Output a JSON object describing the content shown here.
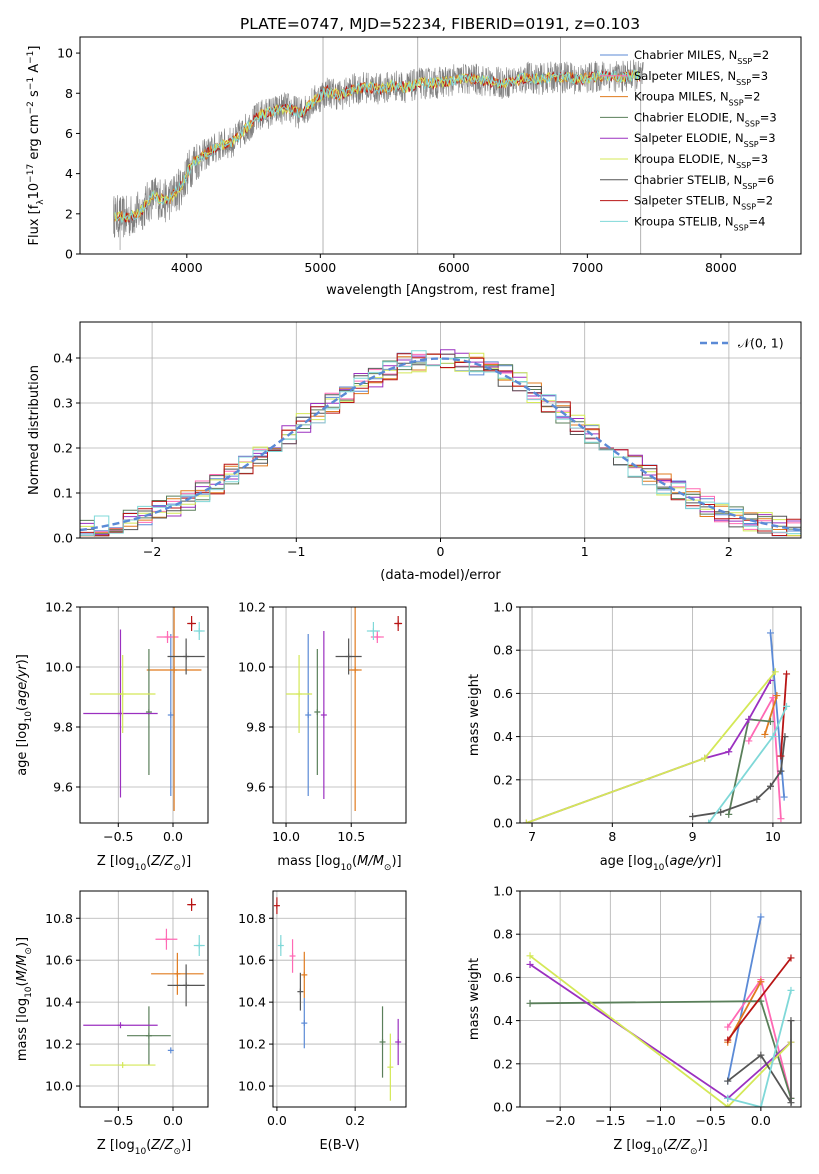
{
  "colors": {
    "chabrier_miles": "#5b8ad6",
    "salpeter_miles": "#ff69b4",
    "kroupa_miles": "#e07b1f",
    "chabrier_elodie": "#5a7f5a",
    "salpeter_elodie": "#9b30c0",
    "kroupa_elodie": "#d4e857",
    "chabrier_stelib": "#555555",
    "salpeter_stelib": "#b81414",
    "kroupa_stelib": "#7fd8d8",
    "normal": "#5b8ad6",
    "data": "#808080"
  },
  "chart_data": [
    {
      "id": "spectrum",
      "type": "line",
      "title": "PLATE=0747, MJD=52234, FIBERID=0191, z=0.103",
      "xlabel": "wavelength [Angstrom, rest frame]",
      "ylabel": "Flux [f_λ10^-17 erg cm^-2 s^-1 A^-1]",
      "xlim": [
        3200,
        8600
      ],
      "ylim": [
        0,
        10.8
      ],
      "xticks": [
        4000,
        5000,
        6000,
        7000,
        8000
      ],
      "yticks": [
        0,
        2,
        4,
        6,
        8,
        10
      ],
      "legend_position": "top-right",
      "legend": [
        "Chabrier MILES, N_SSP=2",
        "Salpeter MILES, N_SSP=3",
        "Kroupa MILES, N_SSP=2",
        "Chabrier ELODIE, N_SSP=3",
        "Salpeter ELODIE, N_SSP=3",
        "Kroupa ELODIE, N_SSP=3",
        "Chabrier STELIB, N_SSP=6",
        "Salpeter STELIB, N_SSP=2",
        "Kroupa STELIB, N_SSP=4"
      ],
      "model_continuum": {
        "x": [
          3450,
          3550,
          3650,
          3750,
          3850,
          3950,
          4050,
          4150,
          4250,
          4350,
          4450,
          4550,
          4650,
          4750,
          4850,
          4950,
          5050,
          5150,
          5250,
          5350,
          5450,
          5550,
          5650,
          5750,
          5850,
          5950,
          6050,
          6150,
          6250,
          6350,
          6450,
          6550,
          6650,
          6750,
          6850,
          6950,
          7050,
          7150,
          7250,
          7350,
          7400
        ],
        "y": [
          1.9,
          1.8,
          2.1,
          2.9,
          2.6,
          3.3,
          4.6,
          5.0,
          5.4,
          5.6,
          6.3,
          6.9,
          7.1,
          7.3,
          7.0,
          7.6,
          8.1,
          7.9,
          8.2,
          8.3,
          8.2,
          8.4,
          8.3,
          8.5,
          8.5,
          8.6,
          8.7,
          8.7,
          8.6,
          8.5,
          8.6,
          8.8,
          8.7,
          8.8,
          8.8,
          8.7,
          8.8,
          8.9,
          8.8,
          8.9,
          8.8
        ]
      }
    },
    {
      "id": "residuals",
      "type": "histogram",
      "xlabel": "(data-model)/error",
      "ylabel": "Normed distribution",
      "xlim": [
        -2.5,
        2.5
      ],
      "ylim": [
        0,
        0.48
      ],
      "xticks": [
        -2,
        -1,
        0,
        1,
        2
      ],
      "yticks": [
        0.0,
        0.1,
        0.2,
        0.3,
        0.4
      ],
      "legend_position": "top-right",
      "legend": [
        "N(0,1)"
      ]
    },
    {
      "id": "age_vs_Z",
      "type": "scatter",
      "xlabel": "Z [log10(Z/Z⊙)]",
      "ylabel": "age  [log10(age/yr)]",
      "xlim": [
        -0.85,
        0.32
      ],
      "ylim": [
        9.48,
        10.2
      ],
      "xticks": [
        -0.5,
        0.0
      ],
      "yticks": [
        9.6,
        9.8,
        10.0,
        10.2
      ],
      "points": [
        {
          "series": "chabrier_miles",
          "x": -0.02,
          "y": 9.84,
          "xerr": 0.0,
          "yerr": 0.27
        },
        {
          "series": "salpeter_miles",
          "x": -0.05,
          "y": 10.1,
          "xerr": 0.1,
          "yerr": 0.02
        },
        {
          "series": "kroupa_miles",
          "x": 0.01,
          "y": 9.99,
          "xerr": 0.25,
          "yerr": 0.47
        },
        {
          "series": "chabrier_elodie",
          "x": -0.22,
          "y": 9.85,
          "xerr": 0.0,
          "yerr": 0.21
        },
        {
          "series": "salpeter_elodie",
          "x": -0.48,
          "y": 9.845,
          "xerr": 0.34,
          "yerr": 0.28
        },
        {
          "series": "kroupa_elodie",
          "x": -0.46,
          "y": 9.91,
          "xerr": 0.3,
          "yerr": 0.13
        },
        {
          "series": "chabrier_stelib",
          "x": 0.12,
          "y": 10.035,
          "xerr": 0.17,
          "yerr": 0.06
        },
        {
          "series": "salpeter_stelib",
          "x": 0.17,
          "y": 10.145,
          "xerr": 0.04,
          "yerr": 0.025
        },
        {
          "series": "kroupa_stelib",
          "x": 0.24,
          "y": 10.12,
          "xerr": 0.05,
          "yerr": 0.03
        }
      ]
    },
    {
      "id": "age_vs_mass",
      "type": "scatter",
      "xlabel": "mass [log10(M/M⊙)]",
      "ylabel": "",
      "xlim": [
        9.9,
        10.92
      ],
      "ylim": [
        9.48,
        10.2
      ],
      "xticks": [
        10.0,
        10.5
      ],
      "yticks": [
        9.6,
        9.8,
        10.0,
        10.2
      ],
      "points": [
        {
          "series": "chabrier_miles",
          "x": 10.17,
          "y": 9.84,
          "xerr": 0.0,
          "yerr": 0.27
        },
        {
          "series": "salpeter_miles",
          "x": 10.7,
          "y": 10.1,
          "xerr": 0.05,
          "yerr": 0.02
        },
        {
          "series": "kroupa_miles",
          "x": 10.53,
          "y": 9.99,
          "xerr": 0.05,
          "yerr": 0.47
        },
        {
          "series": "chabrier_elodie",
          "x": 10.24,
          "y": 9.85,
          "xerr": 0.0,
          "yerr": 0.21
        },
        {
          "series": "salpeter_elodie",
          "x": 10.29,
          "y": 9.84,
          "xerr": 0.0,
          "yerr": 0.28
        },
        {
          "series": "kroupa_elodie",
          "x": 10.1,
          "y": 9.91,
          "xerr": 0.1,
          "yerr": 0.13
        },
        {
          "series": "chabrier_stelib",
          "x": 10.48,
          "y": 10.035,
          "xerr": 0.1,
          "yerr": 0.06
        },
        {
          "series": "salpeter_stelib",
          "x": 10.86,
          "y": 10.145,
          "xerr": 0.03,
          "yerr": 0.025
        },
        {
          "series": "kroupa_stelib",
          "x": 10.67,
          "y": 10.12,
          "xerr": 0.05,
          "yerr": 0.03
        }
      ]
    },
    {
      "id": "mw_vs_age",
      "type": "line",
      "xlabel": "age  [log10(age/yr)]",
      "ylabel": "mass weight",
      "xlim": [
        6.85,
        10.35
      ],
      "ylim": [
        0,
        1.0
      ],
      "xticks": [
        7,
        8,
        9,
        10
      ],
      "yticks": [
        0.0,
        0.2,
        0.4,
        0.6,
        0.8,
        1.0
      ],
      "series": [
        {
          "series": "chabrier_miles",
          "x": [
            9.97,
            10.14
          ],
          "y": [
            0.88,
            0.12
          ]
        },
        {
          "series": "salpeter_miles",
          "x": [
            9.7,
            10.0,
            10.1
          ],
          "y": [
            0.38,
            0.58,
            0.02
          ]
        },
        {
          "series": "kroupa_miles",
          "x": [
            9.9,
            10.05
          ],
          "y": [
            0.41,
            0.59
          ]
        },
        {
          "series": "chabrier_elodie",
          "x": [
            9.45,
            9.7,
            9.97
          ],
          "y": [
            0.04,
            0.48,
            0.47
          ]
        },
        {
          "series": "salpeter_elodie",
          "x": [
            6.93,
            9.15,
            9.45,
            9.7,
            9.97
          ],
          "y": [
            0.0,
            0.3,
            0.33,
            0.48,
            0.66
          ]
        },
        {
          "series": "kroupa_elodie",
          "x": [
            6.93,
            9.15,
            10.03
          ],
          "y": [
            0.0,
            0.3,
            0.7
          ]
        },
        {
          "series": "chabrier_stelib",
          "x": [
            9.0,
            9.35,
            9.8,
            9.97,
            10.1,
            10.15
          ],
          "y": [
            0.03,
            0.05,
            0.11,
            0.17,
            0.24,
            0.4
          ]
        },
        {
          "series": "salpeter_stelib",
          "x": [
            10.1,
            10.17
          ],
          "y": [
            0.31,
            0.69
          ]
        },
        {
          "series": "kroupa_stelib",
          "x": [
            9.2,
            10.0,
            10.17
          ],
          "y": [
            0.0,
            0.4,
            0.54
          ]
        }
      ]
    },
    {
      "id": "mass_vs_Z",
      "type": "scatter",
      "xlabel": "Z [log10(Z/Z⊙)]",
      "ylabel": "mass [log10(M/M⊙)]",
      "xlim": [
        -0.85,
        0.32
      ],
      "ylim": [
        9.9,
        10.93
      ],
      "xticks": [
        -0.5,
        0.0
      ],
      "yticks": [
        10.0,
        10.2,
        10.4,
        10.6,
        10.8
      ],
      "points": [
        {
          "series": "chabrier_miles",
          "x": -0.02,
          "y": 10.17,
          "xerr": 0.0,
          "yerr": 0.0
        },
        {
          "series": "salpeter_miles",
          "x": -0.06,
          "y": 10.7,
          "xerr": 0.1,
          "yerr": 0.05
        },
        {
          "series": "kroupa_miles",
          "x": 0.04,
          "y": 10.535,
          "xerr": 0.24,
          "yerr": 0.1
        },
        {
          "series": "chabrier_elodie",
          "x": -0.22,
          "y": 10.24,
          "xerr": 0.2,
          "yerr": 0.14
        },
        {
          "series": "salpeter_elodie",
          "x": -0.48,
          "y": 10.29,
          "xerr": 0.34,
          "yerr": 0.0
        },
        {
          "series": "kroupa_elodie",
          "x": -0.46,
          "y": 10.1,
          "xerr": 0.3,
          "yerr": 0.0
        },
        {
          "series": "chabrier_stelib",
          "x": 0.12,
          "y": 10.48,
          "xerr": 0.17,
          "yerr": 0.1
        },
        {
          "series": "salpeter_stelib",
          "x": 0.17,
          "y": 10.865,
          "xerr": 0.04,
          "yerr": 0.03
        },
        {
          "series": "kroupa_stelib",
          "x": 0.24,
          "y": 10.67,
          "xerr": 0.05,
          "yerr": 0.05
        }
      ]
    },
    {
      "id": "mass_vs_ebv",
      "type": "scatter",
      "xlabel": "E(B-V)",
      "ylabel": "",
      "xlim": [
        -0.01,
        0.33
      ],
      "ylim": [
        9.9,
        10.93
      ],
      "xticks": [
        0.0,
        0.2
      ],
      "yticks": [
        10.0,
        10.2,
        10.4,
        10.6,
        10.8
      ],
      "points": [
        {
          "series": "chabrier_miles",
          "x": 0.07,
          "y": 10.3,
          "xerr": 0,
          "yerr": 0.12
        },
        {
          "series": "salpeter_miles",
          "x": 0.04,
          "y": 10.62,
          "xerr": 0,
          "yerr": 0.08
        },
        {
          "series": "kroupa_miles",
          "x": 0.07,
          "y": 10.53,
          "xerr": 0,
          "yerr": 0.11
        },
        {
          "series": "chabrier_elodie",
          "x": 0.27,
          "y": 10.21,
          "xerr": 0,
          "yerr": 0.17
        },
        {
          "series": "salpeter_elodie",
          "x": 0.31,
          "y": 10.21,
          "xerr": 0,
          "yerr": 0.11
        },
        {
          "series": "kroupa_elodie",
          "x": 0.29,
          "y": 10.09,
          "xerr": 0,
          "yerr": 0.16
        },
        {
          "series": "chabrier_stelib",
          "x": 0.06,
          "y": 10.45,
          "xerr": 0,
          "yerr": 0.09
        },
        {
          "series": "salpeter_stelib",
          "x": 0.0,
          "y": 10.86,
          "xerr": 0,
          "yerr": 0.04
        },
        {
          "series": "kroupa_stelib",
          "x": 0.01,
          "y": 10.67,
          "xerr": 0,
          "yerr": 0.05
        }
      ]
    },
    {
      "id": "mw_vs_Z",
      "type": "line",
      "xlabel": "Z [log10(Z/Z⊙)]",
      "ylabel": "mass weight",
      "xlim": [
        -2.4,
        0.4
      ],
      "ylim": [
        0,
        1.0
      ],
      "xticks": [
        -2.0,
        -1.5,
        -1.0,
        -0.5,
        0.0
      ],
      "yticks": [
        0.0,
        0.2,
        0.4,
        0.6,
        0.8,
        1.0
      ],
      "series": [
        {
          "series": "chabrier_miles",
          "x": [
            -0.33,
            0.0
          ],
          "y": [
            0.12,
            0.88
          ]
        },
        {
          "series": "salpeter_miles",
          "x": [
            -0.33,
            0.0,
            0.3
          ],
          "y": [
            0.37,
            0.59,
            0.04
          ]
        },
        {
          "series": "kroupa_miles",
          "x": [
            -0.33,
            0.0
          ],
          "y": [
            0.3,
            0.58
          ]
        },
        {
          "series": "chabrier_elodie",
          "x": [
            -2.3,
            0.0,
            0.3
          ],
          "y": [
            0.48,
            0.49,
            0.04
          ]
        },
        {
          "series": "salpeter_elodie",
          "x": [
            -2.3,
            -0.33,
            0.3
          ],
          "y": [
            0.66,
            0.04,
            0.3
          ]
        },
        {
          "series": "kroupa_elodie",
          "x": [
            -2.3,
            -0.33,
            0.3
          ],
          "y": [
            0.7,
            0.0,
            0.3
          ]
        },
        {
          "series": "chabrier_stelib",
          "x": [
            -0.33,
            0.0,
            0.3,
            0.3
          ],
          "y": [
            0.12,
            0.24,
            0.02,
            0.4
          ]
        },
        {
          "series": "salpeter_stelib",
          "x": [
            -0.33,
            0.3
          ],
          "y": [
            0.31,
            0.69
          ]
        },
        {
          "series": "kroupa_stelib",
          "x": [
            -0.33,
            0.0,
            0.3
          ],
          "y": [
            0.04,
            0.0,
            0.54
          ]
        }
      ]
    }
  ]
}
